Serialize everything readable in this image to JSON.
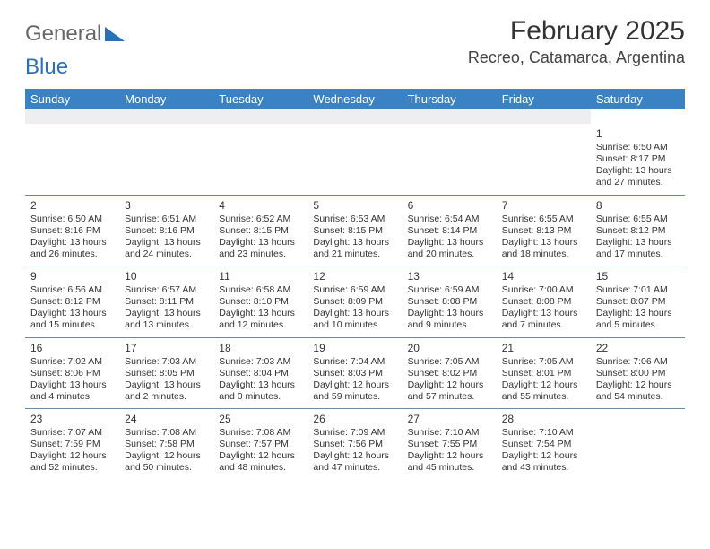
{
  "brand": {
    "part1": "General",
    "part2": "Blue"
  },
  "title": "February 2025",
  "location": "Recreo, Catamarca, Argentina",
  "header_bg": "#3a82c4",
  "header_text_color": "#ffffff",
  "row_divider_color": "#6a88a8",
  "blank_bg": "#eeeeee",
  "body_text_color": "#333333",
  "dayNames": [
    "Sunday",
    "Monday",
    "Tuesday",
    "Wednesday",
    "Thursday",
    "Friday",
    "Saturday"
  ],
  "weeks": [
    [
      null,
      null,
      null,
      null,
      null,
      null,
      {
        "n": "1",
        "sr": "6:50 AM",
        "ss": "8:17 PM",
        "dl": "13 hours and 27 minutes."
      }
    ],
    [
      {
        "n": "2",
        "sr": "6:50 AM",
        "ss": "8:16 PM",
        "dl": "13 hours and 26 minutes."
      },
      {
        "n": "3",
        "sr": "6:51 AM",
        "ss": "8:16 PM",
        "dl": "13 hours and 24 minutes."
      },
      {
        "n": "4",
        "sr": "6:52 AM",
        "ss": "8:15 PM",
        "dl": "13 hours and 23 minutes."
      },
      {
        "n": "5",
        "sr": "6:53 AM",
        "ss": "8:15 PM",
        "dl": "13 hours and 21 minutes."
      },
      {
        "n": "6",
        "sr": "6:54 AM",
        "ss": "8:14 PM",
        "dl": "13 hours and 20 minutes."
      },
      {
        "n": "7",
        "sr": "6:55 AM",
        "ss": "8:13 PM",
        "dl": "13 hours and 18 minutes."
      },
      {
        "n": "8",
        "sr": "6:55 AM",
        "ss": "8:12 PM",
        "dl": "13 hours and 17 minutes."
      }
    ],
    [
      {
        "n": "9",
        "sr": "6:56 AM",
        "ss": "8:12 PM",
        "dl": "13 hours and 15 minutes."
      },
      {
        "n": "10",
        "sr": "6:57 AM",
        "ss": "8:11 PM",
        "dl": "13 hours and 13 minutes."
      },
      {
        "n": "11",
        "sr": "6:58 AM",
        "ss": "8:10 PM",
        "dl": "13 hours and 12 minutes."
      },
      {
        "n": "12",
        "sr": "6:59 AM",
        "ss": "8:09 PM",
        "dl": "13 hours and 10 minutes."
      },
      {
        "n": "13",
        "sr": "6:59 AM",
        "ss": "8:08 PM",
        "dl": "13 hours and 9 minutes."
      },
      {
        "n": "14",
        "sr": "7:00 AM",
        "ss": "8:08 PM",
        "dl": "13 hours and 7 minutes."
      },
      {
        "n": "15",
        "sr": "7:01 AM",
        "ss": "8:07 PM",
        "dl": "13 hours and 5 minutes."
      }
    ],
    [
      {
        "n": "16",
        "sr": "7:02 AM",
        "ss": "8:06 PM",
        "dl": "13 hours and 4 minutes."
      },
      {
        "n": "17",
        "sr": "7:03 AM",
        "ss": "8:05 PM",
        "dl": "13 hours and 2 minutes."
      },
      {
        "n": "18",
        "sr": "7:03 AM",
        "ss": "8:04 PM",
        "dl": "13 hours and 0 minutes."
      },
      {
        "n": "19",
        "sr": "7:04 AM",
        "ss": "8:03 PM",
        "dl": "12 hours and 59 minutes."
      },
      {
        "n": "20",
        "sr": "7:05 AM",
        "ss": "8:02 PM",
        "dl": "12 hours and 57 minutes."
      },
      {
        "n": "21",
        "sr": "7:05 AM",
        "ss": "8:01 PM",
        "dl": "12 hours and 55 minutes."
      },
      {
        "n": "22",
        "sr": "7:06 AM",
        "ss": "8:00 PM",
        "dl": "12 hours and 54 minutes."
      }
    ],
    [
      {
        "n": "23",
        "sr": "7:07 AM",
        "ss": "7:59 PM",
        "dl": "12 hours and 52 minutes."
      },
      {
        "n": "24",
        "sr": "7:08 AM",
        "ss": "7:58 PM",
        "dl": "12 hours and 50 minutes."
      },
      {
        "n": "25",
        "sr": "7:08 AM",
        "ss": "7:57 PM",
        "dl": "12 hours and 48 minutes."
      },
      {
        "n": "26",
        "sr": "7:09 AM",
        "ss": "7:56 PM",
        "dl": "12 hours and 47 minutes."
      },
      {
        "n": "27",
        "sr": "7:10 AM",
        "ss": "7:55 PM",
        "dl": "12 hours and 45 minutes."
      },
      {
        "n": "28",
        "sr": "7:10 AM",
        "ss": "7:54 PM",
        "dl": "12 hours and 43 minutes."
      },
      null
    ]
  ],
  "labels": {
    "sunrise": "Sunrise:",
    "sunset": "Sunset:",
    "daylight": "Daylight:"
  },
  "typography": {
    "title_fontsize": 30,
    "location_fontsize": 18,
    "dayhead_fontsize": 13,
    "cell_fontsize": 10.5,
    "daynum_fontsize": 12
  }
}
